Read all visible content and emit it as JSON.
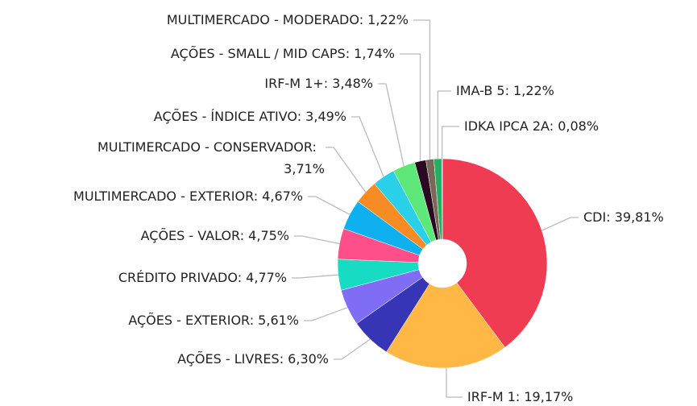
{
  "chart_data": {
    "type": "donut",
    "separator": ": ",
    "categories": [
      "CDI",
      "IRF-M 1",
      "AÇÕES - LIVRES",
      "AÇÕES - EXTERIOR",
      "CRÉDITO PRIVADO",
      "AÇÕES - VALOR",
      "MULTIMERCADO - EXTERIOR",
      "MULTIMERCADO - CONSERVADOR",
      "AÇÕES - ÍNDICE ATIVO",
      "IRF-M 1+",
      "AÇÕES - SMALL / MID CAPS",
      "MULTIMERCADO - MODERADO",
      "IMA-B 5",
      "IDKA IPCA 2A"
    ],
    "values": [
      39.81,
      19.17,
      6.3,
      5.61,
      4.77,
      4.75,
      4.67,
      3.71,
      3.49,
      3.48,
      1.74,
      1.22,
      1.22,
      0.08
    ],
    "value_labels": [
      "39,81%",
      "19,17%",
      "6,30%",
      "5,61%",
      "4,77%",
      "4,75%",
      "4,67%",
      "3,71%",
      "3,49%",
      "3,48%",
      "1,74%",
      "1,22%",
      "1,22%",
      "0,08%"
    ],
    "colors": [
      "#f03c52",
      "#ffb845",
      "#3535b5",
      "#7f6ef5",
      "#18dbc4",
      "#ff4f8a",
      "#0fb0f0",
      "#f78c25",
      "#2ad0e8",
      "#5ee87a",
      "#2a0a20",
      "#786858",
      "#1fb060",
      "#5080e0"
    ]
  }
}
